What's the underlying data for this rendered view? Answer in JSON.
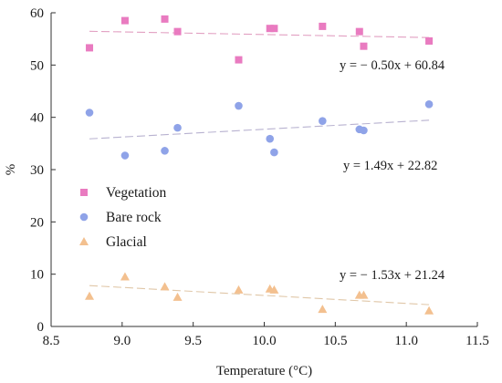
{
  "chart_data": {
    "type": "scatter",
    "xlabel": "Temperature (°C)",
    "ylabel": "%",
    "xlim": [
      8.5,
      11.5
    ],
    "ylim": [
      0,
      60
    ],
    "x_ticks": [
      "8.5",
      "9.0",
      "9.5",
      "10.0",
      "10.5",
      "11.0",
      "11.5"
    ],
    "y_ticks": [
      "0",
      "10",
      "20",
      "30",
      "40",
      "50",
      "60"
    ],
    "grid": false,
    "legend_position": "center-left",
    "series": [
      {
        "name": "Vegetation",
        "marker": "square",
        "color": "#e97bc0",
        "trend_color": "#e2a0c2",
        "points": [
          {
            "x": 8.77,
            "y": 53.3
          },
          {
            "x": 9.02,
            "y": 58.5
          },
          {
            "x": 9.3,
            "y": 58.8
          },
          {
            "x": 9.39,
            "y": 56.4
          },
          {
            "x": 9.82,
            "y": 51.0
          },
          {
            "x": 10.04,
            "y": 57.0
          },
          {
            "x": 10.07,
            "y": 57.0
          },
          {
            "x": 10.41,
            "y": 57.4
          },
          {
            "x": 10.67,
            "y": 56.4
          },
          {
            "x": 10.7,
            "y": 53.6
          },
          {
            "x": 11.16,
            "y": 54.6
          }
        ],
        "trendline": {
          "slope": -0.5,
          "intercept": 60.84,
          "equation": "y = − 0.50x + 60.84"
        }
      },
      {
        "name": "Bare rock",
        "marker": "circle",
        "color": "#8fa3e8",
        "trend_color": "#b8b2d0",
        "points": [
          {
            "x": 8.77,
            "y": 40.9
          },
          {
            "x": 9.02,
            "y": 32.7
          },
          {
            "x": 9.3,
            "y": 33.6
          },
          {
            "x": 9.39,
            "y": 38.0
          },
          {
            "x": 9.82,
            "y": 42.2
          },
          {
            "x": 10.04,
            "y": 35.9
          },
          {
            "x": 10.07,
            "y": 33.3
          },
          {
            "x": 10.41,
            "y": 39.3
          },
          {
            "x": 10.67,
            "y": 37.7
          },
          {
            "x": 10.7,
            "y": 37.5
          },
          {
            "x": 11.16,
            "y": 42.5
          }
        ],
        "trendline": {
          "slope": 1.49,
          "intercept": 22.82,
          "equation": "y = 1.49x + 22.82"
        }
      },
      {
        "name": "Glacial",
        "marker": "triangle",
        "color": "#f3c08f",
        "trend_color": "#e0c7a8",
        "points": [
          {
            "x": 8.77,
            "y": 5.8
          },
          {
            "x": 9.02,
            "y": 9.5
          },
          {
            "x": 9.3,
            "y": 7.6
          },
          {
            "x": 9.39,
            "y": 5.6
          },
          {
            "x": 9.82,
            "y": 7.0
          },
          {
            "x": 10.04,
            "y": 7.2
          },
          {
            "x": 10.07,
            "y": 7.0
          },
          {
            "x": 10.41,
            "y": 3.3
          },
          {
            "x": 10.67,
            "y": 6.0
          },
          {
            "x": 10.7,
            "y": 6.0
          },
          {
            "x": 11.16,
            "y": 3.0
          }
        ],
        "trendline": {
          "slope": -1.53,
          "intercept": 21.24,
          "equation": "y = − 1.53x + 21.24"
        }
      }
    ]
  }
}
